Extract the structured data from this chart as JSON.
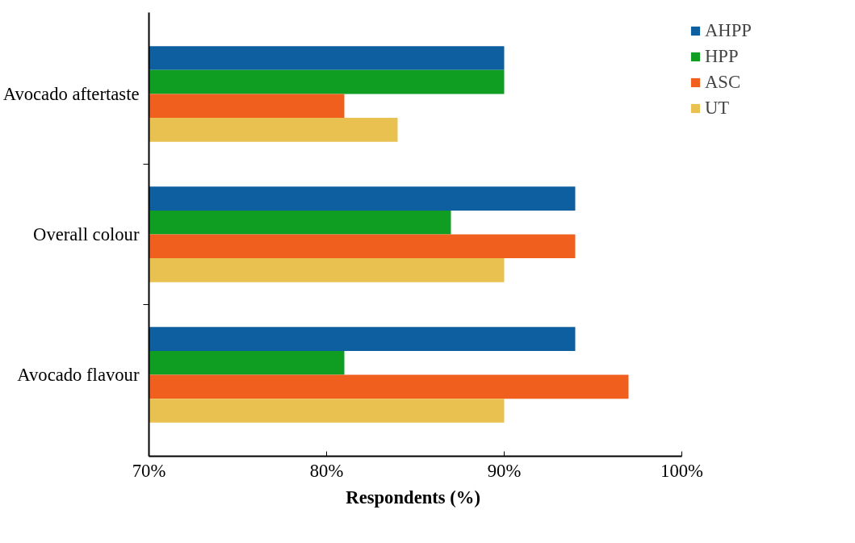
{
  "chart_data": {
    "type": "bar",
    "orientation": "horizontal",
    "xlabel": "Respondents  (%)",
    "categories": [
      "Avocado aftertaste",
      "Overall colour",
      "Avocado flavour"
    ],
    "series": [
      {
        "name": "AHPP",
        "color": "#0e5fa0",
        "values": [
          90,
          94,
          94
        ]
      },
      {
        "name": "HPP",
        "color": "#109e22",
        "values": [
          90,
          87,
          81
        ]
      },
      {
        "name": "ASC",
        "color": "#f05f1e",
        "values": [
          81,
          94,
          97
        ]
      },
      {
        "name": "UT",
        "color": "#e8c150",
        "values": [
          84,
          90,
          90
        ]
      }
    ],
    "xlim": [
      70,
      100
    ],
    "xticks": [
      {
        "value": 70,
        "label": "70%"
      },
      {
        "value": 80,
        "label": "80%"
      },
      {
        "value": 90,
        "label": "90%"
      },
      {
        "value": 100,
        "label": "100%"
      }
    ],
    "grid": false,
    "legend": "right"
  }
}
